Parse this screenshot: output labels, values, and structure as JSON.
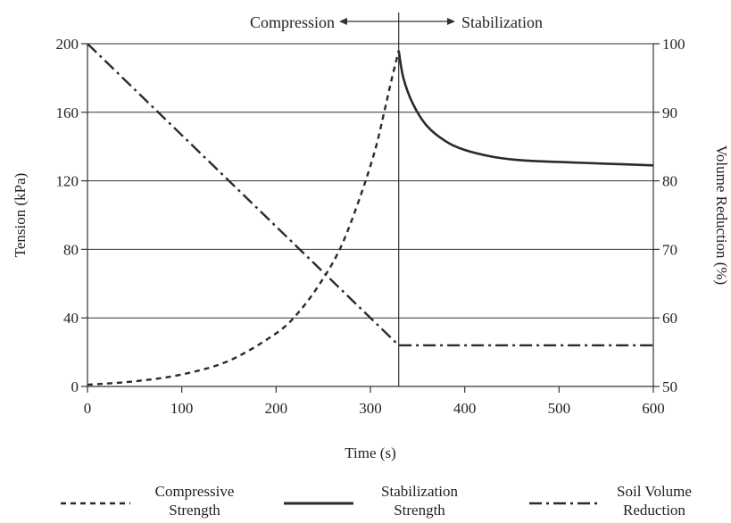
{
  "chart_data": {
    "type": "line",
    "xlabel": "Time (s)",
    "ylabel_left": "Tension (kPa)",
    "ylabel_right": "Volume Reduction (%)",
    "xlim": [
      0,
      600
    ],
    "ylim_left": [
      0,
      200
    ],
    "ylim_right": [
      50,
      100
    ],
    "x_ticks": [
      0,
      100,
      200,
      300,
      400,
      500,
      600
    ],
    "y_ticks_left": [
      0,
      40,
      80,
      120,
      160,
      200
    ],
    "y_ticks_right": [
      50,
      60,
      70,
      80,
      90,
      100
    ],
    "grid": "horizontal",
    "phase_divider_x": 330,
    "phase_labels": {
      "left": "Compression",
      "right": "Stabilization"
    },
    "legend_position": "bottom",
    "series": [
      {
        "name": "Compressive Strength",
        "axis": "left",
        "style": "dotted",
        "x": [
          0,
          50,
          100,
          150,
          200,
          225,
          250,
          270,
          290,
          305,
          315,
          322,
          330
        ],
        "y": [
          1,
          3,
          7,
          15,
          31,
          44,
          63,
          83,
          112,
          138,
          161,
          178,
          196
        ]
      },
      {
        "name": "Stabilization Strength",
        "axis": "left",
        "style": "solid",
        "x": [
          330,
          335,
          345,
          360,
          380,
          400,
          430,
          460,
          500,
          550,
          600
        ],
        "y": [
          196,
          180,
          165,
          152,
          143,
          138,
          134,
          132,
          131,
          130,
          129
        ]
      },
      {
        "name": "Soil Volume Reduction",
        "axis": "right",
        "style": "dash-dot",
        "x": [
          0,
          330,
          600
        ],
        "y": [
          100,
          56,
          56
        ]
      }
    ],
    "legend": [
      {
        "label_line1": "Compressive",
        "label_line2": "Strength",
        "style": "dotted"
      },
      {
        "label_line1": "Stabilization",
        "label_line2": "Strength",
        "style": "solid"
      },
      {
        "label_line1": "Soil Volume",
        "label_line2": "Reduction",
        "style": "dash-dot"
      }
    ],
    "colors": {
      "line": "#2a2a2a",
      "grid": "#333333"
    }
  }
}
